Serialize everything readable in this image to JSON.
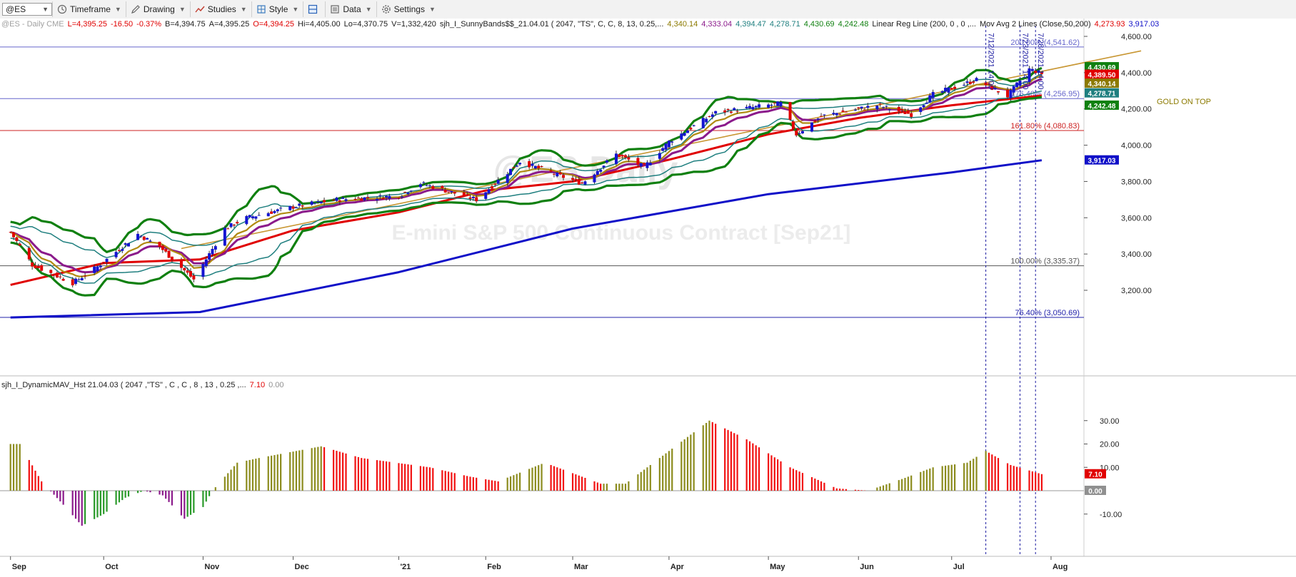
{
  "toolbar": {
    "symbol": "@ES",
    "buttons": [
      {
        "label": "Timeframe",
        "icon": "clock-icon"
      },
      {
        "label": "Drawing",
        "icon": "pencil-icon"
      },
      {
        "label": "Studies",
        "icon": "studies-icon"
      },
      {
        "label": "Style",
        "icon": "style-icon"
      },
      {
        "label": "",
        "icon": "layout-icon"
      },
      {
        "label": "Data",
        "icon": "data-icon"
      },
      {
        "label": "Settings",
        "icon": "gear-icon"
      }
    ]
  },
  "info_items": [
    {
      "text": "@ES - Daily  CME",
      "color": "#a0a0a0"
    },
    {
      "text": "L=4,395.25",
      "color": "#e00000"
    },
    {
      "text": "-16.50",
      "color": "#e00000"
    },
    {
      "text": "-0.37%",
      "color": "#e00000"
    },
    {
      "text": "B=4,394.75",
      "color": "#202020"
    },
    {
      "text": "A=4,395.25",
      "color": "#202020"
    },
    {
      "text": "O=4,394.25",
      "color": "#e00000"
    },
    {
      "text": "Hi=4,405.00",
      "color": "#202020"
    },
    {
      "text": "Lo=4,370.75",
      "color": "#202020"
    },
    {
      "text": "V=1,332,420",
      "color": "#202020"
    },
    {
      "text": "sjh_I_SunnyBands$$_21.04.01 (  2047, \"TS\",  C,  C,    8,  13,  0.25,...",
      "color": "#202020"
    },
    {
      "text": "4,340.14",
      "color": "#8c7a00"
    },
    {
      "text": "4,333.04",
      "color": "#8b1a8b"
    },
    {
      "text": "4,394.47",
      "color": "#1f7f7f"
    },
    {
      "text": "4,278.71",
      "color": "#1f7f7f"
    },
    {
      "text": "4,430.69",
      "color": "#108010"
    },
    {
      "text": "4,242.48",
      "color": "#108010"
    },
    {
      "text": "Linear Reg Line (200, 0 , 0 ,...",
      "color": "#202020"
    },
    {
      "text": "Mov Avg 2 Lines (Close,50,200)",
      "color": "#202020"
    },
    {
      "text": "4,273.93",
      "color": "#e00000"
    },
    {
      "text": "3,917.03",
      "color": "#1010c8"
    }
  ],
  "indicator_items": [
    {
      "text": "sjh_I_DynamicMAV_Hst 21.04.03 ( 2047 ,\"TS\" , C , C ,  8 , 13 , 0.25 ,...",
      "color": "#202020"
    },
    {
      "text": "7.10",
      "color": "#e00000"
    },
    {
      "text": "0.00",
      "color": "#909090"
    }
  ],
  "watermark": {
    "line1": "@ES Daily",
    "line2": "E-mini S&P 500 Continuous Contract [Sep21]"
  },
  "chart_data": [
    {
      "type": "candlestick",
      "title": "@ES - Daily",
      "ylim": [
        3050,
        4680
      ],
      "y_ticks": [
        "3,200.00",
        "3,400.00",
        "3,600.00",
        "3,800.00",
        "4,000.00",
        "4,200.00",
        "4,400.00",
        "4,600.00"
      ],
      "x_months": [
        "Sep",
        "Oct",
        "Nov",
        "Dec",
        "'21",
        "Feb",
        "Mar",
        "Apr",
        "May",
        "Jun",
        "Jul",
        "Aug"
      ],
      "close_path": [
        [
          "2020-09-01",
          3520
        ],
        [
          "2020-09-08",
          3340
        ],
        [
          "2020-09-21",
          3240
        ],
        [
          "2020-09-29",
          3330
        ],
        [
          "2020-10-12",
          3510
        ],
        [
          "2020-10-19",
          3440
        ],
        [
          "2020-10-30",
          3260
        ],
        [
          "2020-11-09",
          3540
        ],
        [
          "2020-11-16",
          3600
        ],
        [
          "2020-12-01",
          3660
        ],
        [
          "2020-12-15",
          3700
        ],
        [
          "2021-01-04",
          3720
        ],
        [
          "2021-01-11",
          3790
        ],
        [
          "2021-01-29",
          3700
        ],
        [
          "2021-02-12",
          3910
        ],
        [
          "2021-02-25",
          3830
        ],
        [
          "2021-03-04",
          3790
        ],
        [
          "2021-03-15",
          3950
        ],
        [
          "2021-03-24",
          3880
        ],
        [
          "2021-04-01",
          4020
        ],
        [
          "2021-04-16",
          4180
        ],
        [
          "2021-05-07",
          4230
        ],
        [
          "2021-05-12",
          4060
        ],
        [
          "2021-05-20",
          4160
        ],
        [
          "2021-06-07",
          4220
        ],
        [
          "2021-06-18",
          4170
        ],
        [
          "2021-06-25",
          4280
        ],
        [
          "2021-07-09",
          4360
        ],
        [
          "2021-07-19",
          4270
        ],
        [
          "2021-07-26",
          4420
        ],
        [
          "2021-07-30",
          4395
        ]
      ],
      "fib_levels": [
        {
          "label": "200.00% (4,541.62)",
          "value": 4541.62,
          "color": "#6666cc"
        },
        {
          "label": "176.40% (4,256.95)",
          "value": 4256.95,
          "color": "#6666cc"
        },
        {
          "label": "161.80% (4,080.83)",
          "value": 4080.83,
          "color": "#cc2222"
        },
        {
          "label": "100.00% (3,335.37)",
          "value": 3335.37,
          "color": "#555555"
        },
        {
          "label": "76.40% (3,050.69)",
          "value": 3050.69,
          "color": "#2222aa"
        }
      ],
      "series": [
        {
          "name": "Mov Avg 200",
          "color": "#1010c8",
          "points": [
            [
              "2020-09-01",
              3050
            ],
            [
              "2020-11-01",
              3080
            ],
            [
              "2021-01-04",
              3300
            ],
            [
              "2021-03-01",
              3540
            ],
            [
              "2021-05-03",
              3730
            ],
            [
              "2021-07-01",
              3850
            ],
            [
              "2021-07-30",
              3917
            ]
          ]
        },
        {
          "name": "Mov Avg 50",
          "color": "#e00000",
          "points": [
            [
              "2020-09-01",
              3230
            ],
            [
              "2020-10-01",
              3350
            ],
            [
              "2020-11-01",
              3370
            ],
            [
              "2020-12-01",
              3530
            ],
            [
              "2021-01-04",
              3630
            ],
            [
              "2021-02-01",
              3750
            ],
            [
              "2021-03-01",
              3800
            ],
            [
              "2021-04-01",
              3920
            ],
            [
              "2021-05-03",
              4060
            ],
            [
              "2021-06-01",
              4150
            ],
            [
              "2021-07-01",
              4220
            ],
            [
              "2021-07-30",
              4274
            ]
          ]
        },
        {
          "name": "Linear Reg Line",
          "color": "#c89632",
          "points": [
            [
              "2020-10-26",
              3430
            ],
            [
              "2021-08-31",
              4520
            ]
          ]
        }
      ],
      "price_labels": [
        {
          "text": "4,430.69",
          "value": 4430.69,
          "bg": "#108010"
        },
        {
          "text": "4,389.50",
          "value": 4389.5,
          "bg": "#e00000"
        },
        {
          "text": "4,340.14",
          "value": 4340.14,
          "bg": "#8c7a00"
        },
        {
          "text": "4,278.71",
          "value": 4278.71,
          "bg": "#1f7f7f"
        },
        {
          "text": "4,242.48",
          "value": 4242.48,
          "bg": "#108010"
        },
        {
          "text": "3,917.03",
          "value": 3917.03,
          "bg": "#1010c8"
        }
      ],
      "annotations": [
        {
          "text": "GOLD ON TOP",
          "color": "#8c7a00"
        },
        {
          "text": "7/12/2021 14:00",
          "date": "2021-07-12"
        },
        {
          "text": "7/23/2021 14:00",
          "date": "2021-07-23"
        },
        {
          "text": "7/28/2021 14:00",
          "date": "2021-07-28"
        }
      ]
    },
    {
      "type": "bar",
      "title": "sjh_I_DynamicMAV_Hst 21.04.03",
      "ylim": [
        -16,
        32
      ],
      "y_ticks": [
        "-10.00",
        "10.00",
        "20.00",
        "30.00"
      ],
      "current_value": "7.10",
      "zero_label": "0.00",
      "profile": [
        [
          "2020-09-01",
          20
        ],
        [
          "2020-09-04",
          20
        ],
        [
          "2020-09-11",
          4
        ],
        [
          "2020-09-18",
          -6
        ],
        [
          "2020-09-24",
          -15
        ],
        [
          "2020-10-01",
          -10
        ],
        [
          "2020-10-08",
          -3
        ],
        [
          "2020-10-14",
          0
        ],
        [
          "2020-10-20",
          -2
        ],
        [
          "2020-10-27",
          -12
        ],
        [
          "2020-11-02",
          -7
        ],
        [
          "2020-11-05",
          0
        ],
        [
          "2020-11-13",
          12
        ],
        [
          "2020-11-20",
          14
        ],
        [
          "2020-12-10",
          19
        ],
        [
          "2020-12-23",
          14
        ],
        [
          "2021-01-14",
          10
        ],
        [
          "2021-01-27",
          6
        ],
        [
          "2021-02-05",
          4
        ],
        [
          "2021-02-20",
          12
        ],
        [
          "2021-03-10",
          3
        ],
        [
          "2021-03-18",
          3
        ],
        [
          "2021-03-25",
          10
        ],
        [
          "2021-04-14",
          30
        ],
        [
          "2021-04-26",
          22
        ],
        [
          "2021-05-10",
          10
        ],
        [
          "2021-05-25",
          1
        ],
        [
          "2021-06-04",
          0
        ],
        [
          "2021-06-15",
          5
        ],
        [
          "2021-06-25",
          10
        ],
        [
          "2021-07-06",
          12
        ],
        [
          "2021-07-12",
          17
        ],
        [
          "2021-07-20",
          11
        ],
        [
          "2021-07-30",
          7.1
        ]
      ]
    }
  ]
}
